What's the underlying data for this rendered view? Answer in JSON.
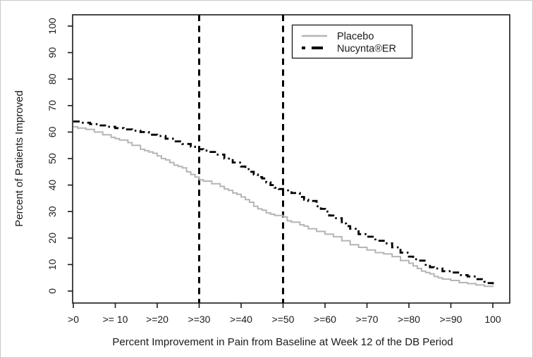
{
  "figure": {
    "background": "#ffffff",
    "border_color": "#c8c8c8"
  },
  "chart_data": {
    "type": "line",
    "subtype": "step",
    "title": "",
    "xlabel": "Percent Improvement in Pain from Baseline at Week 12 of the DB Period",
    "ylabel": "Percent of Patients Improved",
    "xlim": [
      0,
      100
    ],
    "ylim": [
      0,
      100
    ],
    "grid": false,
    "x_tick_values": [
      0,
      10,
      20,
      30,
      40,
      50,
      60,
      70,
      80,
      90,
      100
    ],
    "x_tick_labels": [
      ">0",
      ">= 10",
      ">=20",
      ">=30",
      ">=40",
      ">=50",
      ">=60",
      ">=70",
      ">=80",
      ">=90",
      "100"
    ],
    "y_tick_values": [
      0,
      10,
      20,
      30,
      40,
      50,
      60,
      70,
      80,
      90,
      100
    ],
    "y_tick_labels": [
      "0",
      "10",
      "20",
      "30",
      "40",
      "50",
      "60",
      "70",
      "80",
      "90",
      "100"
    ],
    "reference_lines": [
      {
        "axis": "x",
        "value": 30,
        "style": "dashed",
        "color": "#000000",
        "width": 3
      },
      {
        "axis": "x",
        "value": 50,
        "style": "dashed",
        "color": "#000000",
        "width": 3
      }
    ],
    "legend": {
      "position": "top-center",
      "border": true,
      "entries": [
        {
          "label": "Placebo",
          "color": "#b5b5b5",
          "style": "solid"
        },
        {
          "label": "Nucynta®ER",
          "color": "#000000",
          "style": "dashdot"
        }
      ]
    },
    "series": [
      {
        "name": "Placebo",
        "color": "#b5b5b5",
        "style": "solid",
        "width": 2,
        "points": [
          [
            0,
            62
          ],
          [
            1,
            61.5
          ],
          [
            3,
            61
          ],
          [
            5,
            60
          ],
          [
            7,
            59
          ],
          [
            9,
            58
          ],
          [
            10,
            57.5
          ],
          [
            11,
            57
          ],
          [
            13,
            56
          ],
          [
            14,
            55
          ],
          [
            16,
            53.5
          ],
          [
            17,
            53
          ],
          [
            18,
            52.5
          ],
          [
            19,
            52
          ],
          [
            20,
            51
          ],
          [
            21,
            50
          ],
          [
            22,
            49.5
          ],
          [
            23,
            48.5
          ],
          [
            24,
            47.5
          ],
          [
            25,
            47
          ],
          [
            26,
            46.5
          ],
          [
            27,
            45
          ],
          [
            28,
            44
          ],
          [
            29,
            43
          ],
          [
            30,
            42
          ],
          [
            31,
            41.5
          ],
          [
            33,
            40.5
          ],
          [
            35,
            39.5
          ],
          [
            36,
            38.5
          ],
          [
            37,
            38
          ],
          [
            38,
            37
          ],
          [
            39,
            36.5
          ],
          [
            40,
            35.5
          ],
          [
            41,
            34.5
          ],
          [
            42,
            33.5
          ],
          [
            43,
            32
          ],
          [
            44,
            31
          ],
          [
            45,
            30.5
          ],
          [
            46,
            29.5
          ],
          [
            47,
            29
          ],
          [
            48,
            28.5
          ],
          [
            50,
            28
          ],
          [
            51,
            26.5
          ],
          [
            52,
            26
          ],
          [
            54,
            25
          ],
          [
            55,
            24.5
          ],
          [
            56,
            23.5
          ],
          [
            58,
            22.5
          ],
          [
            60,
            21.5
          ],
          [
            62,
            20.5
          ],
          [
            64,
            19
          ],
          [
            66,
            17.5
          ],
          [
            68,
            16.5
          ],
          [
            70,
            15.5
          ],
          [
            72,
            14.5
          ],
          [
            74,
            14
          ],
          [
            76,
            13
          ],
          [
            78,
            11.5
          ],
          [
            80,
            10.5
          ],
          [
            81,
            9.5
          ],
          [
            82,
            8.5
          ],
          [
            83,
            7.5
          ],
          [
            84,
            7
          ],
          [
            85,
            6.5
          ],
          [
            86,
            5.5
          ],
          [
            87,
            5
          ],
          [
            88,
            4.5
          ],
          [
            90,
            4
          ],
          [
            92,
            3.2
          ],
          [
            94,
            2.8
          ],
          [
            96,
            2.3
          ],
          [
            98,
            1.8
          ],
          [
            100,
            1.5
          ]
        ]
      },
      {
        "name": "Nucynta®ER",
        "color": "#000000",
        "style": "dashdot",
        "width": 2.8,
        "points": [
          [
            0,
            64
          ],
          [
            2,
            63.5
          ],
          [
            4,
            63
          ],
          [
            6,
            62.5
          ],
          [
            8,
            62
          ],
          [
            10,
            61.5
          ],
          [
            12,
            61
          ],
          [
            14,
            60.5
          ],
          [
            16,
            60
          ],
          [
            18,
            59
          ],
          [
            20,
            58.5
          ],
          [
            22,
            57.5
          ],
          [
            24,
            56.5
          ],
          [
            26,
            55.5
          ],
          [
            28,
            54.5
          ],
          [
            29,
            54
          ],
          [
            30,
            53.5
          ],
          [
            31,
            53
          ],
          [
            32,
            52.5
          ],
          [
            34,
            51.5
          ],
          [
            36,
            50
          ],
          [
            38,
            48.5
          ],
          [
            40,
            47
          ],
          [
            41,
            46
          ],
          [
            42,
            45
          ],
          [
            43,
            44
          ],
          [
            44,
            43
          ],
          [
            45,
            42.5
          ],
          [
            46,
            41
          ],
          [
            47,
            40
          ],
          [
            48,
            39
          ],
          [
            49,
            38.5
          ],
          [
            50,
            38
          ],
          [
            52,
            37
          ],
          [
            54,
            35.5
          ],
          [
            55,
            34.5
          ],
          [
            56,
            34
          ],
          [
            58,
            32
          ],
          [
            59,
            31
          ],
          [
            60,
            30
          ],
          [
            61,
            28.5
          ],
          [
            62,
            27.5
          ],
          [
            64,
            25.5
          ],
          [
            65,
            24.5
          ],
          [
            66,
            23.5
          ],
          [
            68,
            21.5
          ],
          [
            70,
            20.5
          ],
          [
            72,
            19
          ],
          [
            74,
            18
          ],
          [
            76,
            16.5
          ],
          [
            78,
            14.5
          ],
          [
            80,
            13
          ],
          [
            81,
            12
          ],
          [
            82,
            11.5
          ],
          [
            84,
            9.5
          ],
          [
            85,
            9
          ],
          [
            86,
            8.5
          ],
          [
            88,
            7.5
          ],
          [
            90,
            7
          ],
          [
            92,
            6
          ],
          [
            94,
            5.5
          ],
          [
            96,
            4.5
          ],
          [
            98,
            3.5
          ],
          [
            99,
            3
          ],
          [
            100,
            2.5
          ]
        ]
      }
    ]
  }
}
